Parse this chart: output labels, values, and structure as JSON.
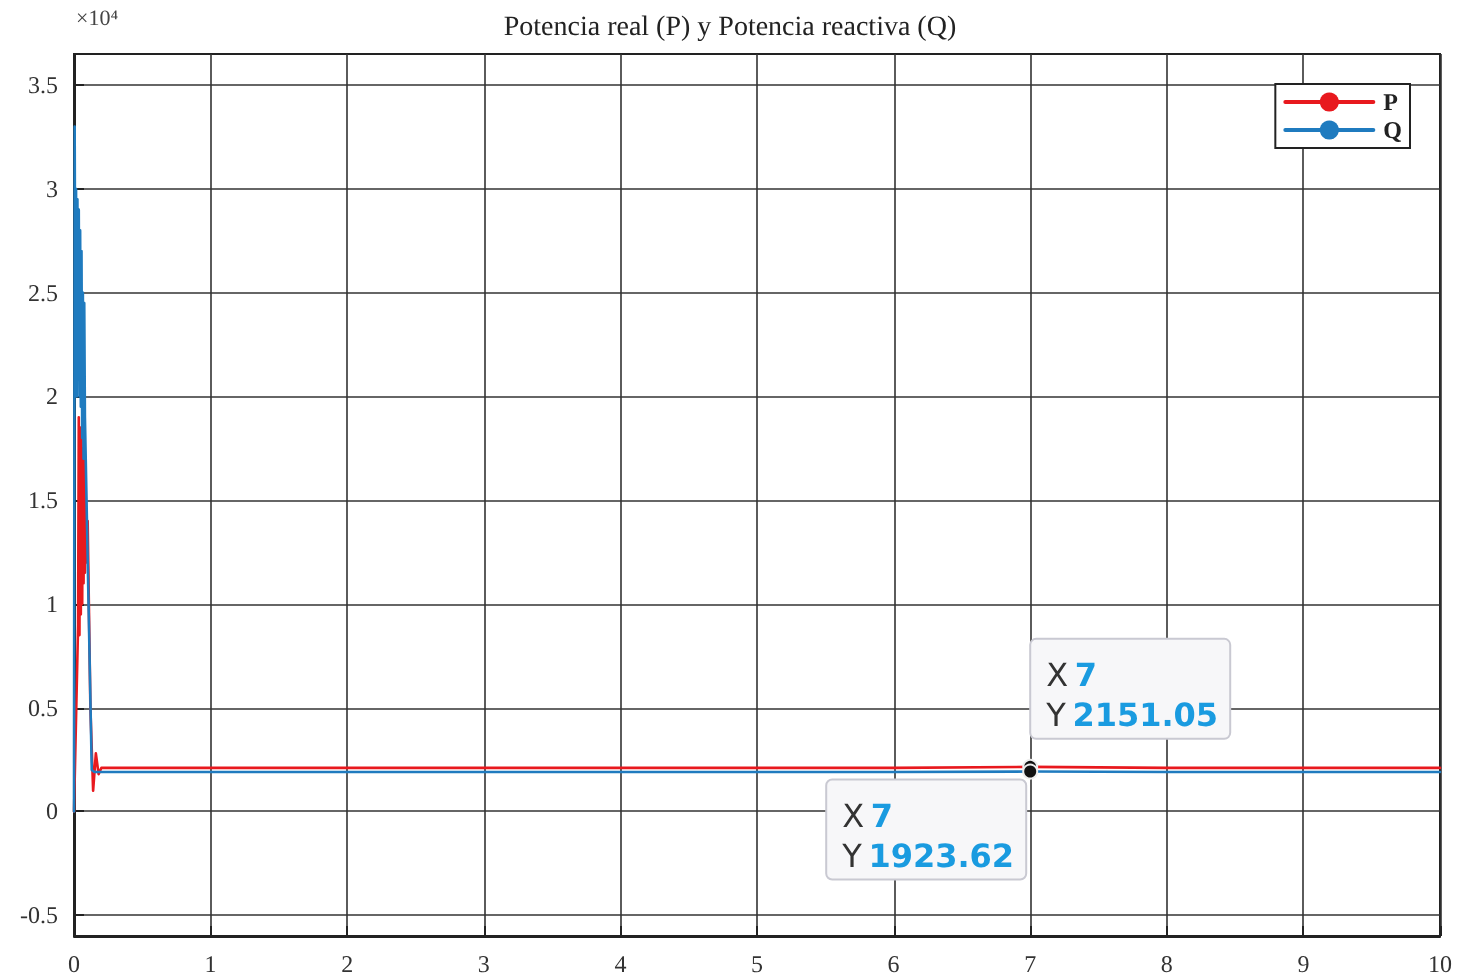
{
  "chart_data": {
    "type": "line",
    "title": "Potencia real (P) y Potencia reactiva (Q)",
    "xlim": [
      0,
      10
    ],
    "xticks": [
      0,
      1,
      2,
      3,
      4,
      5,
      6,
      7,
      8,
      9,
      10
    ],
    "ylim": [
      -0.6,
      3.65
    ],
    "yticks": [
      -0.5,
      0,
      0.5,
      1,
      1.5,
      2,
      2.5,
      3,
      3.5
    ],
    "grid": true,
    "legend": "top right",
    "marker": "none",
    "line_style": "solid",
    "series": [
      {
        "name": "P",
        "color": "#e8191e",
        "x": [
          0,
          0.03,
          0.035,
          0.04,
          0.045,
          0.05,
          0.055,
          0.06,
          0.065,
          0.07,
          0.075,
          0.08,
          0.085,
          0.09,
          0.1,
          0.12,
          0.14,
          0.16,
          0.18,
          0.2,
          1,
          2,
          3,
          4,
          5,
          6,
          7,
          8,
          9,
          10
        ],
        "values": [
          0,
          0.9,
          1.9,
          0.85,
          1.85,
          0.95,
          1.8,
          1.0,
          1.75,
          1.1,
          1.7,
          1.15,
          1.6,
          1.2,
          1.4,
          0.5,
          0.1,
          0.28,
          0.18,
          0.21,
          0.21,
          0.21,
          0.21,
          0.21,
          0.21,
          0.21,
          0.215105,
          0.21,
          0.21,
          0.21
        ]
      },
      {
        "name": "Q",
        "color": "#1f7bbf",
        "x": [
          0,
          0.005,
          0.01,
          0.015,
          0.02,
          0.025,
          0.03,
          0.035,
          0.04,
          0.045,
          0.05,
          0.055,
          0.06,
          0.065,
          0.07,
          0.075,
          0.08,
          0.13,
          0.15,
          0.2,
          1,
          2,
          3,
          4,
          5,
          6,
          7,
          8,
          9,
          10
        ],
        "values": [
          0,
          3.3,
          2.2,
          3.0,
          2.0,
          2.95,
          2.1,
          2.9,
          2.0,
          2.8,
          1.95,
          2.7,
          1.8,
          2.5,
          1.7,
          2.45,
          1.9,
          0.2,
          0.19,
          0.19,
          0.19,
          0.19,
          0.19,
          0.19,
          0.19,
          0.19,
          0.192362,
          0.19,
          0.19,
          0.19
        ]
      }
    ],
    "annotations": [
      "×10⁴",
      {
        "text": "X 7\nY 2151.05",
        "x": 7,
        "y": 0.215105
      },
      {
        "text": "X 7\nY 1923.62",
        "x": 7,
        "y": 0.192362
      }
    ]
  }
}
